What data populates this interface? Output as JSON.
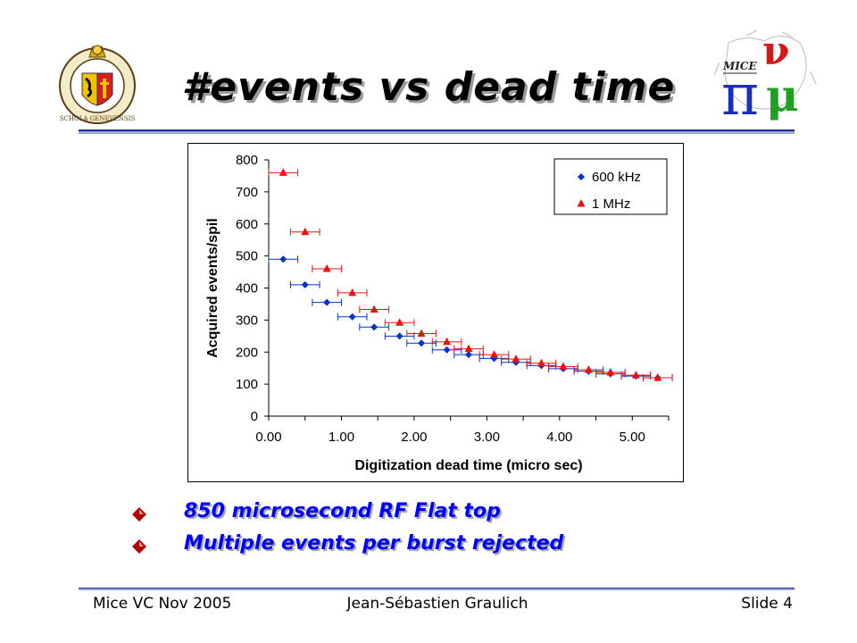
{
  "slide": {
    "title": "#events vs dead time",
    "bullets": [
      "850 microsecond RF Flat top",
      "Multiple events per burst rejected"
    ],
    "footer": {
      "left": "Mice VC Nov 2005",
      "center": "Jean-Sébastien Graulich",
      "right": "Slide 4"
    },
    "logos": {
      "left_text": "SCHOLA GENEVENSIS",
      "right_text": "MICE"
    }
  },
  "colors": {
    "title_shadow": "#9a9a9a",
    "bullet_text": "#0000ff",
    "bullet_mark": "#b00000",
    "rule": "#1a2f8f",
    "series_600khz": "#0033cc",
    "series_1mhz": "#ee1111"
  },
  "chart_data": {
    "type": "scatter",
    "title": "",
    "xlabel": "Digitization dead time (micro sec)",
    "ylabel": "Acquired events/spil",
    "xlim": [
      0,
      5.5
    ],
    "ylim": [
      0,
      800
    ],
    "x_ticks": [
      0,
      1,
      2,
      3,
      4,
      5
    ],
    "x_tick_labels": [
      "0.00",
      "1.00",
      "2.00",
      "3.00",
      "4.00",
      "5.00"
    ],
    "y_ticks": [
      0,
      100,
      200,
      300,
      400,
      500,
      600,
      700,
      800
    ],
    "y_tick_labels": [
      "0",
      "100",
      "200",
      "300",
      "400",
      "500",
      "600",
      "700",
      "800"
    ],
    "grid": false,
    "legend_position": "top-right",
    "x_error": 0.2,
    "series": [
      {
        "name": "600 kHz",
        "marker": "diamond",
        "color": "#0033cc",
        "x": [
          0.2,
          0.5,
          0.8,
          1.15,
          1.45,
          1.8,
          2.1,
          2.45,
          2.75,
          3.1,
          3.4,
          3.75,
          4.05,
          4.4,
          4.7,
          5.05,
          5.35
        ],
        "y": [
          490,
          410,
          355,
          310,
          278,
          250,
          228,
          207,
          192,
          180,
          168,
          158,
          148,
          140,
          132,
          125,
          120
        ]
      },
      {
        "name": "1 MHz",
        "marker": "triangle",
        "color": "#ee1111",
        "x": [
          0.2,
          0.5,
          0.8,
          1.15,
          1.45,
          1.8,
          2.1,
          2.45,
          2.75,
          3.1,
          3.4,
          3.75,
          4.05,
          4.4,
          4.7,
          5.05,
          5.35
        ],
        "y": [
          760,
          575,
          460,
          385,
          333,
          292,
          258,
          232,
          210,
          192,
          178,
          165,
          155,
          145,
          137,
          128,
          120
        ]
      }
    ]
  }
}
